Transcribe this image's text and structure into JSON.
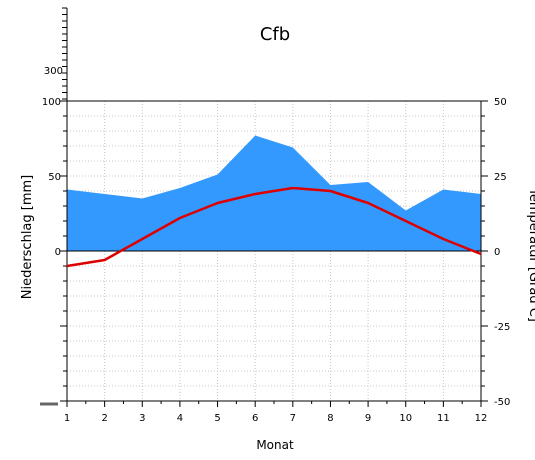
{
  "chart_data": {
    "type": "area",
    "title": "Cfb",
    "xlabel": "Monat",
    "ylabel_left": "Niederschlag [mm]",
    "ylabel_right": "Temperatur [Grad C]",
    "x": [
      1,
      2,
      3,
      4,
      5,
      6,
      7,
      8,
      9,
      10,
      11,
      12
    ],
    "x_ticks": [
      "1",
      "2",
      "3",
      "4",
      "5",
      "6",
      "7",
      "8",
      "9",
      "10",
      "11",
      "12"
    ],
    "xlim": [
      1,
      12
    ],
    "left_axis": {
      "ylim": [
        -100,
        100
      ],
      "ticks": [
        0,
        50,
        100
      ],
      "tick_labels": [
        "0",
        "50",
        "100"
      ],
      "extension_label": "300"
    },
    "right_axis": {
      "ylim": [
        -50,
        50
      ],
      "ticks": [
        -50,
        -25,
        0,
        25,
        50
      ],
      "tick_labels": [
        "-50",
        "-25",
        "0",
        "25",
        "50"
      ]
    },
    "series": [
      {
        "name": "Niederschlag",
        "kind": "area",
        "axis": "left",
        "color": "#3399ff",
        "values": [
          41,
          38,
          35,
          42,
          51,
          77,
          69,
          44,
          46,
          27,
          41,
          38
        ]
      },
      {
        "name": "Temperatur",
        "kind": "line",
        "axis": "right",
        "color": "#dd0000",
        "values": [
          -5,
          -3,
          4,
          11,
          16,
          19,
          21,
          20,
          16,
          10,
          4,
          -1
        ]
      }
    ],
    "grid": true
  }
}
